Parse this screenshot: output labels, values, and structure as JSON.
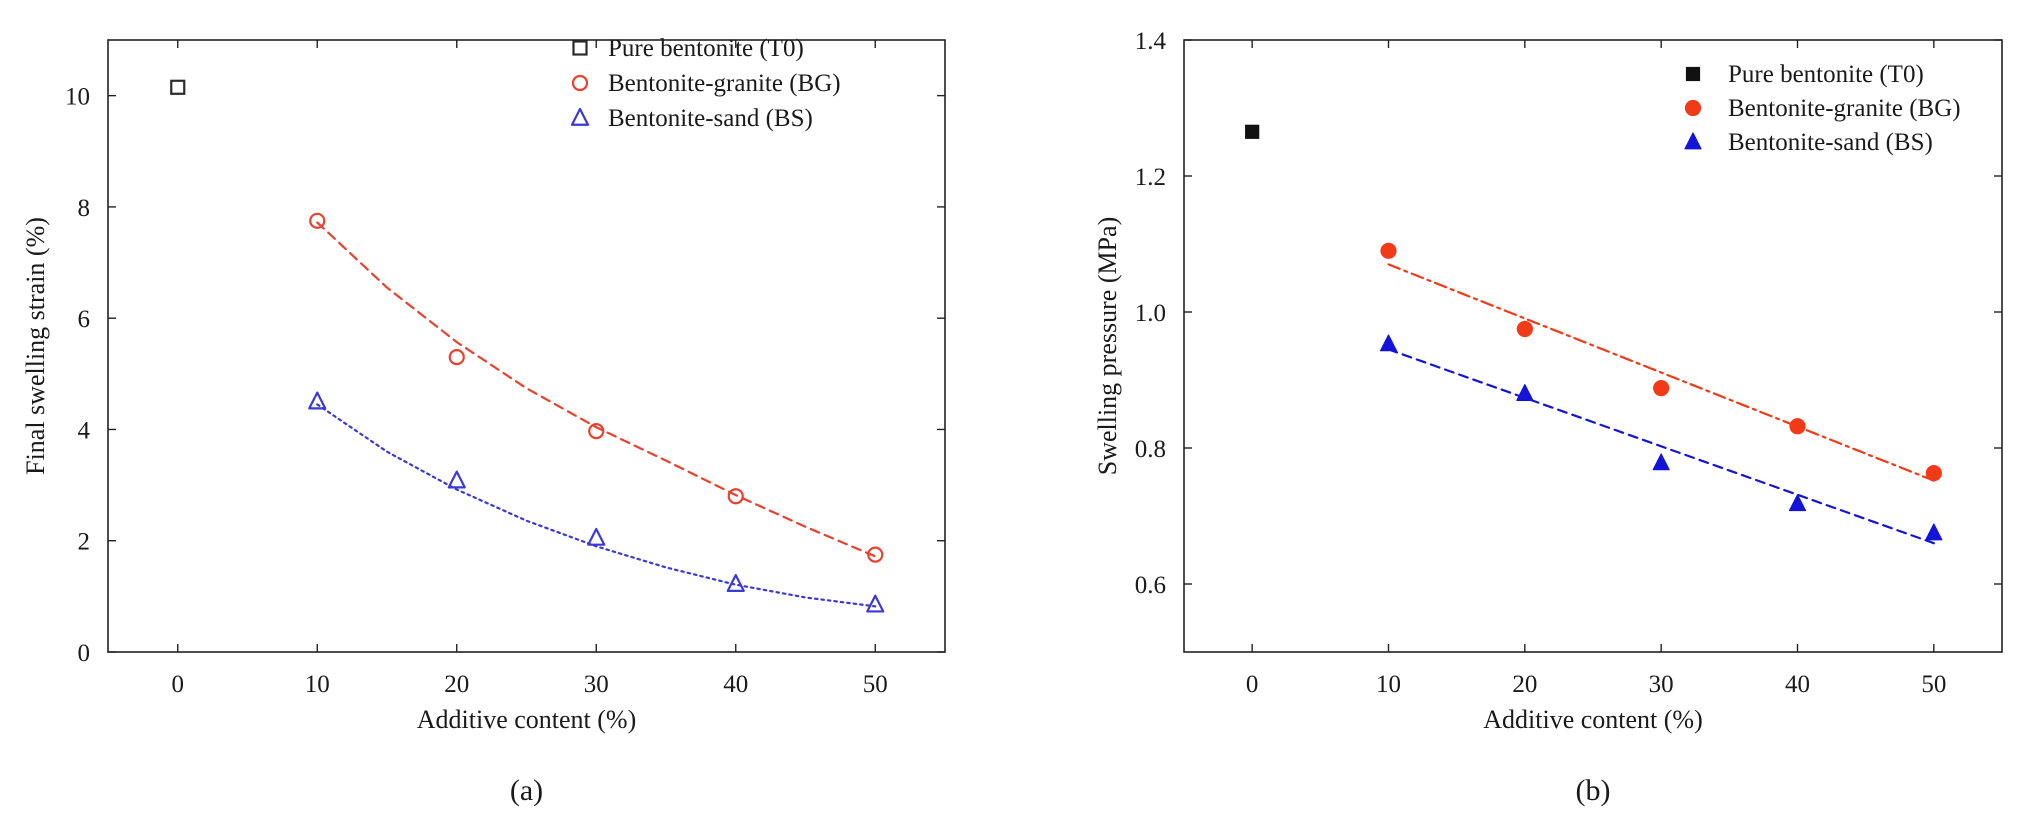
{
  "chart_data": [
    {
      "id": "a",
      "type": "scatter",
      "panel_label": "(a)",
      "xlabel": "Additive content (%)",
      "ylabel": "Final swelling strain (%)",
      "xlim": [
        -5,
        55
      ],
      "ylim": [
        0,
        11
      ],
      "xticks": [
        0,
        10,
        20,
        30,
        40,
        50
      ],
      "yticks": [
        0,
        2,
        4,
        6,
        8,
        10
      ],
      "xtick_labels": [
        "0",
        "10",
        "20",
        "30",
        "40",
        "50"
      ],
      "ytick_labels": [
        "0",
        "2",
        "4",
        "6",
        "8",
        "10"
      ],
      "grid": false,
      "legend_position": "top-right",
      "series": [
        {
          "name": "Pure bentonite (T0)",
          "color": "#2b2b2b",
          "marker": "square",
          "filled": false,
          "x": [
            0
          ],
          "y": [
            10.15
          ],
          "fit": null
        },
        {
          "name": "Bentonite-granite (BG)",
          "color": "#e8422e",
          "marker": "circle",
          "filled": false,
          "x": [
            10,
            20,
            30,
            40,
            50
          ],
          "y": [
            7.75,
            5.3,
            3.97,
            2.8,
            1.75
          ],
          "fit": {
            "style": "dashed",
            "x": [
              10,
              15,
              20,
              25,
              30,
              35,
              40,
              45,
              50
            ],
            "y": [
              7.72,
              6.55,
              5.57,
              4.74,
              4.04,
              3.44,
              2.82,
              2.25,
              1.72
            ]
          }
        },
        {
          "name": "Bentonite-sand (BS)",
          "color": "#3a3ad6",
          "marker": "triangle",
          "filled": false,
          "x": [
            10,
            20,
            30,
            40,
            50
          ],
          "y": [
            4.5,
            3.08,
            2.05,
            1.22,
            0.85
          ],
          "fit": {
            "style": "dotted",
            "x": [
              10,
              15,
              20,
              25,
              30,
              35,
              40,
              45,
              50
            ],
            "y": [
              4.45,
              3.6,
              2.92,
              2.36,
              1.9,
              1.52,
              1.21,
              0.98,
              0.82
            ]
          }
        }
      ]
    },
    {
      "id": "b",
      "type": "scatter",
      "panel_label": "(b)",
      "xlabel": "Additive content (%)",
      "ylabel": "Swelling pressure (MPa)",
      "xlim": [
        -5,
        55
      ],
      "ylim": [
        0.5,
        1.4
      ],
      "xticks": [
        0,
        10,
        20,
        30,
        40,
        50
      ],
      "yticks": [
        0.6,
        0.8,
        1.0,
        1.2,
        1.4
      ],
      "xtick_labels": [
        "0",
        "10",
        "20",
        "30",
        "40",
        "50"
      ],
      "ytick_labels": [
        "0.6",
        "0.8",
        "1.0",
        "1.2",
        "1.4"
      ],
      "grid": false,
      "legend_position": "top-right",
      "series": [
        {
          "name": "Pure bentonite (T0)",
          "color": "#111111",
          "marker": "square",
          "filled": true,
          "x": [
            0
          ],
          "y": [
            1.265
          ],
          "fit": null
        },
        {
          "name": "Bentonite-granite (BG)",
          "color": "#f23a18",
          "marker": "circle",
          "filled": true,
          "x": [
            10,
            20,
            30,
            40,
            50
          ],
          "y": [
            1.09,
            0.975,
            0.888,
            0.832,
            0.763
          ],
          "fit": {
            "style": "dashdot",
            "x": [
              10,
              50
            ],
            "y": [
              1.07,
              0.752
            ]
          }
        },
        {
          "name": "Bentonite-sand (BS)",
          "color": "#1414d8",
          "marker": "triangle",
          "filled": true,
          "x": [
            10,
            20,
            30,
            40,
            50
          ],
          "y": [
            0.953,
            0.88,
            0.778,
            0.718,
            0.675
          ],
          "fit": {
            "style": "dashed",
            "x": [
              10,
              50
            ],
            "y": [
              0.945,
              0.66
            ]
          }
        }
      ]
    }
  ]
}
